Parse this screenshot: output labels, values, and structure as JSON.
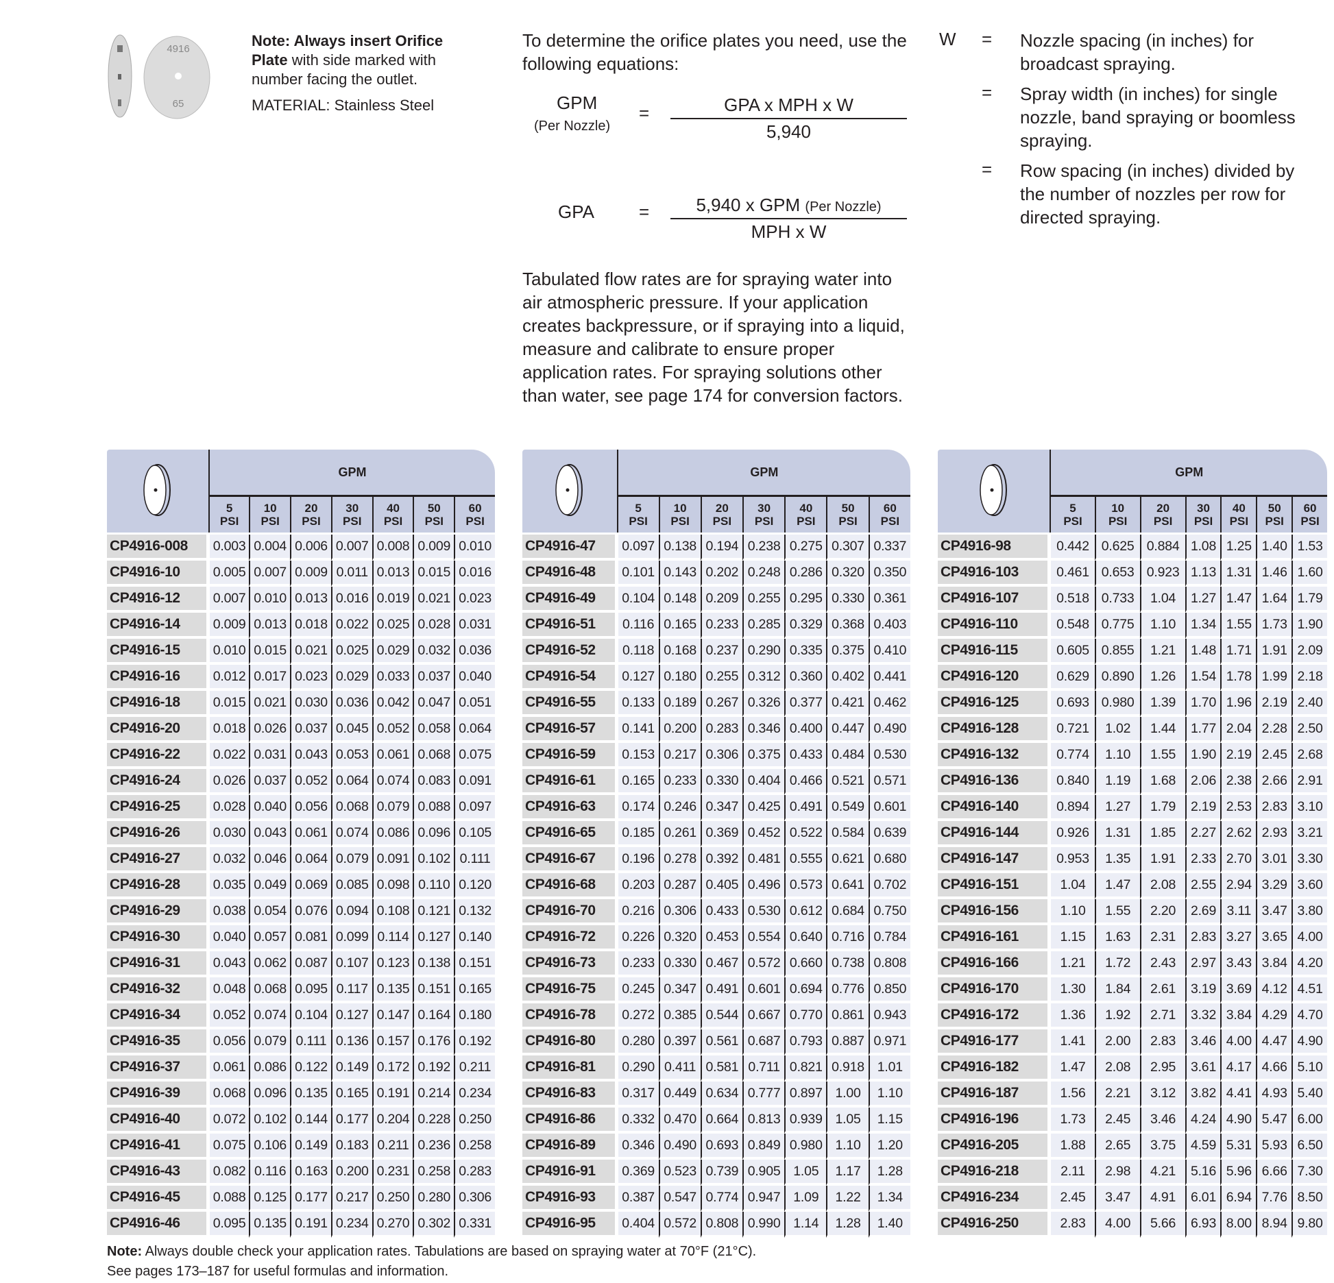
{
  "intro": {
    "note_bold": "Note: Always insert Orifice Plate",
    "note_rest": " with side marked with number facing the outlet.",
    "material": "MATERIAL: Stainless Steel",
    "plate_marking_top": "4916",
    "plate_marking_bottom": "65"
  },
  "equations": {
    "intro": "To determine the orifice plates you need, use the following equations:",
    "gpm_label": "GPM",
    "per_nozzle": "(Per Nozzle)",
    "equals": "=",
    "gpm_num": "GPA x MPH x W",
    "gpm_den": "5,940",
    "gpa_label": "GPA",
    "gpa_num": "5,940 x GPM",
    "gpa_num_small": "(Per Nozzle)",
    "gpa_den": "MPH x W"
  },
  "w_defs": {
    "symbol": "W",
    "equals": "=",
    "items": [
      "Nozzle spacing (in inches) for broadcast spraying.",
      "Spray width (in inches) for single nozzle, band spraying or boomless spraying.",
      "Row spacing (in inches) divided by the number of nozzles per row for directed spraying."
    ]
  },
  "tabulated": "Tabulated flow rates are for spraying water into air atmospheric pressure. If your application creates backpressure, or if spraying into a liquid, measure and calibrate to ensure proper application rates. For spraying solutions other than water, see page 174 for conversion factors.",
  "table_header": {
    "group": "GPM",
    "psi": [
      [
        "5",
        "PSI"
      ],
      [
        "10",
        "PSI"
      ],
      [
        "20",
        "PSI"
      ],
      [
        "30",
        "PSI"
      ],
      [
        "40",
        "PSI"
      ],
      [
        "50",
        "PSI"
      ],
      [
        "60",
        "PSI"
      ]
    ]
  },
  "tables": [
    [
      [
        "CP4916-008",
        "0.003",
        "0.004",
        "0.006",
        "0.007",
        "0.008",
        "0.009",
        "0.010"
      ],
      [
        "CP4916-10",
        "0.005",
        "0.007",
        "0.009",
        "0.011",
        "0.013",
        "0.015",
        "0.016"
      ],
      [
        "CP4916-12",
        "0.007",
        "0.010",
        "0.013",
        "0.016",
        "0.019",
        "0.021",
        "0.023"
      ],
      [
        "CP4916-14",
        "0.009",
        "0.013",
        "0.018",
        "0.022",
        "0.025",
        "0.028",
        "0.031"
      ],
      [
        "CP4916-15",
        "0.010",
        "0.015",
        "0.021",
        "0.025",
        "0.029",
        "0.032",
        "0.036"
      ],
      [
        "CP4916-16",
        "0.012",
        "0.017",
        "0.023",
        "0.029",
        "0.033",
        "0.037",
        "0.040"
      ],
      [
        "CP4916-18",
        "0.015",
        "0.021",
        "0.030",
        "0.036",
        "0.042",
        "0.047",
        "0.051"
      ],
      [
        "CP4916-20",
        "0.018",
        "0.026",
        "0.037",
        "0.045",
        "0.052",
        "0.058",
        "0.064"
      ],
      [
        "CP4916-22",
        "0.022",
        "0.031",
        "0.043",
        "0.053",
        "0.061",
        "0.068",
        "0.075"
      ],
      [
        "CP4916-24",
        "0.026",
        "0.037",
        "0.052",
        "0.064",
        "0.074",
        "0.083",
        "0.091"
      ],
      [
        "CP4916-25",
        "0.028",
        "0.040",
        "0.056",
        "0.068",
        "0.079",
        "0.088",
        "0.097"
      ],
      [
        "CP4916-26",
        "0.030",
        "0.043",
        "0.061",
        "0.074",
        "0.086",
        "0.096",
        "0.105"
      ],
      [
        "CP4916-27",
        "0.032",
        "0.046",
        "0.064",
        "0.079",
        "0.091",
        "0.102",
        "0.111"
      ],
      [
        "CP4916-28",
        "0.035",
        "0.049",
        "0.069",
        "0.085",
        "0.098",
        "0.110",
        "0.120"
      ],
      [
        "CP4916-29",
        "0.038",
        "0.054",
        "0.076",
        "0.094",
        "0.108",
        "0.121",
        "0.132"
      ],
      [
        "CP4916-30",
        "0.040",
        "0.057",
        "0.081",
        "0.099",
        "0.114",
        "0.127",
        "0.140"
      ],
      [
        "CP4916-31",
        "0.043",
        "0.062",
        "0.087",
        "0.107",
        "0.123",
        "0.138",
        "0.151"
      ],
      [
        "CP4916-32",
        "0.048",
        "0.068",
        "0.095",
        "0.117",
        "0.135",
        "0.151",
        "0.165"
      ],
      [
        "CP4916-34",
        "0.052",
        "0.074",
        "0.104",
        "0.127",
        "0.147",
        "0.164",
        "0.180"
      ],
      [
        "CP4916-35",
        "0.056",
        "0.079",
        "0.111",
        "0.136",
        "0.157",
        "0.176",
        "0.192"
      ],
      [
        "CP4916-37",
        "0.061",
        "0.086",
        "0.122",
        "0.149",
        "0.172",
        "0.192",
        "0.211"
      ],
      [
        "CP4916-39",
        "0.068",
        "0.096",
        "0.135",
        "0.165",
        "0.191",
        "0.214",
        "0.234"
      ],
      [
        "CP4916-40",
        "0.072",
        "0.102",
        "0.144",
        "0.177",
        "0.204",
        "0.228",
        "0.250"
      ],
      [
        "CP4916-41",
        "0.075",
        "0.106",
        "0.149",
        "0.183",
        "0.211",
        "0.236",
        "0.258"
      ],
      [
        "CP4916-43",
        "0.082",
        "0.116",
        "0.163",
        "0.200",
        "0.231",
        "0.258",
        "0.283"
      ],
      [
        "CP4916-45",
        "0.088",
        "0.125",
        "0.177",
        "0.217",
        "0.250",
        "0.280",
        "0.306"
      ],
      [
        "CP4916-46",
        "0.095",
        "0.135",
        "0.191",
        "0.234",
        "0.270",
        "0.302",
        "0.331"
      ]
    ],
    [
      [
        "CP4916-47",
        "0.097",
        "0.138",
        "0.194",
        "0.238",
        "0.275",
        "0.307",
        "0.337"
      ],
      [
        "CP4916-48",
        "0.101",
        "0.143",
        "0.202",
        "0.248",
        "0.286",
        "0.320",
        "0.350"
      ],
      [
        "CP4916-49",
        "0.104",
        "0.148",
        "0.209",
        "0.255",
        "0.295",
        "0.330",
        "0.361"
      ],
      [
        "CP4916-51",
        "0.116",
        "0.165",
        "0.233",
        "0.285",
        "0.329",
        "0.368",
        "0.403"
      ],
      [
        "CP4916-52",
        "0.118",
        "0.168",
        "0.237",
        "0.290",
        "0.335",
        "0.375",
        "0.410"
      ],
      [
        "CP4916-54",
        "0.127",
        "0.180",
        "0.255",
        "0.312",
        "0.360",
        "0.402",
        "0.441"
      ],
      [
        "CP4916-55",
        "0.133",
        "0.189",
        "0.267",
        "0.326",
        "0.377",
        "0.421",
        "0.462"
      ],
      [
        "CP4916-57",
        "0.141",
        "0.200",
        "0.283",
        "0.346",
        "0.400",
        "0.447",
        "0.490"
      ],
      [
        "CP4916-59",
        "0.153",
        "0.217",
        "0.306",
        "0.375",
        "0.433",
        "0.484",
        "0.530"
      ],
      [
        "CP4916-61",
        "0.165",
        "0.233",
        "0.330",
        "0.404",
        "0.466",
        "0.521",
        "0.571"
      ],
      [
        "CP4916-63",
        "0.174",
        "0.246",
        "0.347",
        "0.425",
        "0.491",
        "0.549",
        "0.601"
      ],
      [
        "CP4916-65",
        "0.185",
        "0.261",
        "0.369",
        "0.452",
        "0.522",
        "0.584",
        "0.639"
      ],
      [
        "CP4916-67",
        "0.196",
        "0.278",
        "0.392",
        "0.481",
        "0.555",
        "0.621",
        "0.680"
      ],
      [
        "CP4916-68",
        "0.203",
        "0.287",
        "0.405",
        "0.496",
        "0.573",
        "0.641",
        "0.702"
      ],
      [
        "CP4916-70",
        "0.216",
        "0.306",
        "0.433",
        "0.530",
        "0.612",
        "0.684",
        "0.750"
      ],
      [
        "CP4916-72",
        "0.226",
        "0.320",
        "0.453",
        "0.554",
        "0.640",
        "0.716",
        "0.784"
      ],
      [
        "CP4916-73",
        "0.233",
        "0.330",
        "0.467",
        "0.572",
        "0.660",
        "0.738",
        "0.808"
      ],
      [
        "CP4916-75",
        "0.245",
        "0.347",
        "0.491",
        "0.601",
        "0.694",
        "0.776",
        "0.850"
      ],
      [
        "CP4916-78",
        "0.272",
        "0.385",
        "0.544",
        "0.667",
        "0.770",
        "0.861",
        "0.943"
      ],
      [
        "CP4916-80",
        "0.280",
        "0.397",
        "0.561",
        "0.687",
        "0.793",
        "0.887",
        "0.971"
      ],
      [
        "CP4916-81",
        "0.290",
        "0.411",
        "0.581",
        "0.711",
        "0.821",
        "0.918",
        "1.01"
      ],
      [
        "CP4916-83",
        "0.317",
        "0.449",
        "0.634",
        "0.777",
        "0.897",
        "1.00",
        "1.10"
      ],
      [
        "CP4916-86",
        "0.332",
        "0.470",
        "0.664",
        "0.813",
        "0.939",
        "1.05",
        "1.15"
      ],
      [
        "CP4916-89",
        "0.346",
        "0.490",
        "0.693",
        "0.849",
        "0.980",
        "1.10",
        "1.20"
      ],
      [
        "CP4916-91",
        "0.369",
        "0.523",
        "0.739",
        "0.905",
        "1.05",
        "1.17",
        "1.28"
      ],
      [
        "CP4916-93",
        "0.387",
        "0.547",
        "0.774",
        "0.947",
        "1.09",
        "1.22",
        "1.34"
      ],
      [
        "CP4916-95",
        "0.404",
        "0.572",
        "0.808",
        "0.990",
        "1.14",
        "1.28",
        "1.40"
      ]
    ],
    [
      [
        "CP4916-98",
        "0.442",
        "0.625",
        "0.884",
        "1.08",
        "1.25",
        "1.40",
        "1.53"
      ],
      [
        "CP4916-103",
        "0.461",
        "0.653",
        "0.923",
        "1.13",
        "1.31",
        "1.46",
        "1.60"
      ],
      [
        "CP4916-107",
        "0.518",
        "0.733",
        "1.04",
        "1.27",
        "1.47",
        "1.64",
        "1.79"
      ],
      [
        "CP4916-110",
        "0.548",
        "0.775",
        "1.10",
        "1.34",
        "1.55",
        "1.73",
        "1.90"
      ],
      [
        "CP4916-115",
        "0.605",
        "0.855",
        "1.21",
        "1.48",
        "1.71",
        "1.91",
        "2.09"
      ],
      [
        "CP4916-120",
        "0.629",
        "0.890",
        "1.26",
        "1.54",
        "1.78",
        "1.99",
        "2.18"
      ],
      [
        "CP4916-125",
        "0.693",
        "0.980",
        "1.39",
        "1.70",
        "1.96",
        "2.19",
        "2.40"
      ],
      [
        "CP4916-128",
        "0.721",
        "1.02",
        "1.44",
        "1.77",
        "2.04",
        "2.28",
        "2.50"
      ],
      [
        "CP4916-132",
        "0.774",
        "1.10",
        "1.55",
        "1.90",
        "2.19",
        "2.45",
        "2.68"
      ],
      [
        "CP4916-136",
        "0.840",
        "1.19",
        "1.68",
        "2.06",
        "2.38",
        "2.66",
        "2.91"
      ],
      [
        "CP4916-140",
        "0.894",
        "1.27",
        "1.79",
        "2.19",
        "2.53",
        "2.83",
        "3.10"
      ],
      [
        "CP4916-144",
        "0.926",
        "1.31",
        "1.85",
        "2.27",
        "2.62",
        "2.93",
        "3.21"
      ],
      [
        "CP4916-147",
        "0.953",
        "1.35",
        "1.91",
        "2.33",
        "2.70",
        "3.01",
        "3.30"
      ],
      [
        "CP4916-151",
        "1.04",
        "1.47",
        "2.08",
        "2.55",
        "2.94",
        "3.29",
        "3.60"
      ],
      [
        "CP4916-156",
        "1.10",
        "1.55",
        "2.20",
        "2.69",
        "3.11",
        "3.47",
        "3.80"
      ],
      [
        "CP4916-161",
        "1.15",
        "1.63",
        "2.31",
        "2.83",
        "3.27",
        "3.65",
        "4.00"
      ],
      [
        "CP4916-166",
        "1.21",
        "1.72",
        "2.43",
        "2.97",
        "3.43",
        "3.84",
        "4.20"
      ],
      [
        "CP4916-170",
        "1.30",
        "1.84",
        "2.61",
        "3.19",
        "3.69",
        "4.12",
        "4.51"
      ],
      [
        "CP4916-172",
        "1.36",
        "1.92",
        "2.71",
        "3.32",
        "3.84",
        "4.29",
        "4.70"
      ],
      [
        "CP4916-177",
        "1.41",
        "2.00",
        "2.83",
        "3.46",
        "4.00",
        "4.47",
        "4.90"
      ],
      [
        "CP4916-182",
        "1.47",
        "2.08",
        "2.95",
        "3.61",
        "4.17",
        "4.66",
        "5.10"
      ],
      [
        "CP4916-187",
        "1.56",
        "2.21",
        "3.12",
        "3.82",
        "4.41",
        "4.93",
        "5.40"
      ],
      [
        "CP4916-196",
        "1.73",
        "2.45",
        "3.46",
        "4.24",
        "4.90",
        "5.47",
        "6.00"
      ],
      [
        "CP4916-205",
        "1.88",
        "2.65",
        "3.75",
        "4.59",
        "5.31",
        "5.93",
        "6.50"
      ],
      [
        "CP4916-218",
        "2.11",
        "2.98",
        "4.21",
        "5.16",
        "5.96",
        "6.66",
        "7.30"
      ],
      [
        "CP4916-234",
        "2.45",
        "3.47",
        "4.91",
        "6.01",
        "6.94",
        "7.76",
        "8.50"
      ],
      [
        "CP4916-250",
        "2.83",
        "4.00",
        "5.66",
        "6.93",
        "8.00",
        "8.94",
        "9.80"
      ]
    ]
  ],
  "footer": {
    "bold": "Note:",
    "line1": " Always double check your application rates. Tabulations are based on spraying water at 70°F (21°C).",
    "line2": "See pages 173–187 for useful formulas and information."
  }
}
